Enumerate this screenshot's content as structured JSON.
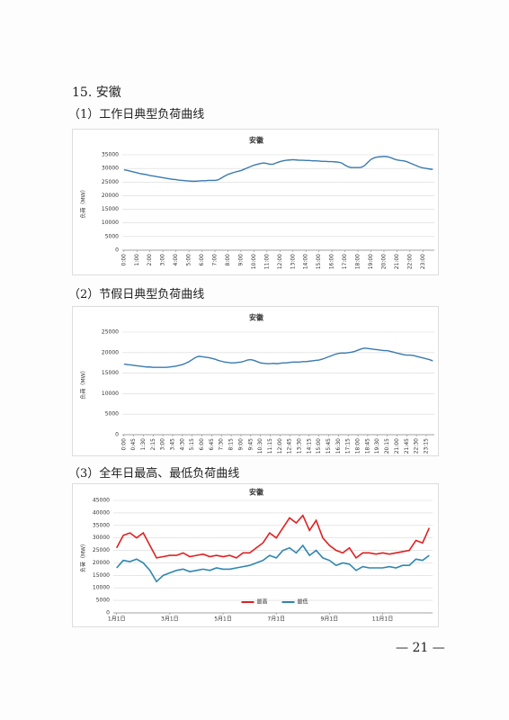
{
  "heading": "15. 安徽",
  "captions": [
    "（1）工作日典型负荷曲线",
    "（2）节假日典型负荷曲线",
    "（3）全年日最高、最低负荷曲线"
  ],
  "page_number": "— 21 —",
  "chart_data": [
    {
      "type": "line",
      "title": "安徽",
      "y_label": "负荷（MW）",
      "color": "#3a7ab0",
      "grid": true,
      "ylim": [
        0,
        35000
      ],
      "yticks": [
        0,
        5000,
        10000,
        15000,
        20000,
        25000,
        30000,
        35000
      ],
      "categories": [
        "0:00",
        null,
        null,
        null,
        "1:00",
        null,
        null,
        null,
        "2:00",
        null,
        null,
        null,
        "3:00",
        null,
        null,
        null,
        "4:00",
        null,
        null,
        null,
        "5:00",
        null,
        null,
        null,
        "6:00",
        null,
        null,
        null,
        "7:00",
        null,
        null,
        null,
        "8:00",
        null,
        null,
        null,
        "9:00",
        null,
        null,
        null,
        "10:00",
        null,
        null,
        null,
        "11:00",
        null,
        null,
        null,
        "12:00",
        null,
        null,
        null,
        "13:00",
        null,
        null,
        null,
        "14:00",
        null,
        null,
        null,
        "15:00",
        null,
        null,
        null,
        "16:00",
        null,
        null,
        null,
        "17:00",
        null,
        null,
        null,
        "18:00",
        null,
        null,
        null,
        "19:00",
        null,
        null,
        null,
        "20:00",
        null,
        null,
        null,
        "21:00",
        null,
        null,
        null,
        "22:00",
        null,
        null,
        null,
        "23:00",
        null,
        null,
        null
      ],
      "values": [
        29500,
        29300,
        29000,
        28700,
        28400,
        28100,
        27900,
        27700,
        27400,
        27200,
        27000,
        26800,
        26600,
        26400,
        26200,
        26000,
        25900,
        25700,
        25600,
        25500,
        25400,
        25300,
        25300,
        25400,
        25500,
        25500,
        25600,
        25600,
        25600,
        25800,
        26500,
        27200,
        27800,
        28200,
        28600,
        28900,
        29200,
        29700,
        30200,
        30700,
        31200,
        31500,
        31800,
        32000,
        31800,
        31500,
        31600,
        32100,
        32500,
        32800,
        33000,
        33100,
        33200,
        33100,
        33000,
        33000,
        32900,
        32900,
        32800,
        32800,
        32700,
        32600,
        32600,
        32500,
        32500,
        32400,
        32300,
        32000,
        31200,
        30600,
        30300,
        30300,
        30300,
        30400,
        31000,
        32200,
        33300,
        33900,
        34200,
        34300,
        34400,
        34300,
        34000,
        33500,
        33100,
        32900,
        32800,
        32500,
        32000,
        31500,
        31000,
        30500,
        30200,
        30000,
        29800,
        29600
      ]
    },
    {
      "type": "line",
      "title": "安徽",
      "y_label": "负荷（MW）",
      "color": "#3a7ab0",
      "grid": true,
      "ylim": [
        0,
        25000
      ],
      "yticks": [
        0,
        5000,
        10000,
        15000,
        20000,
        25000
      ],
      "categories": [
        "0:00",
        null,
        null,
        "0:45",
        null,
        null,
        "1:30",
        null,
        null,
        "2:15",
        null,
        null,
        "3:00",
        null,
        null,
        "3:45",
        null,
        null,
        "4:30",
        null,
        null,
        "5:15",
        null,
        null,
        "6:00",
        null,
        null,
        "6:45",
        null,
        null,
        "7:30",
        null,
        null,
        "8:15",
        null,
        null,
        "9:00",
        null,
        null,
        "9:45",
        null,
        null,
        "10:30",
        null,
        null,
        "11:15",
        null,
        null,
        "12:00",
        null,
        null,
        "12:45",
        null,
        null,
        "13:30",
        null,
        null,
        "14:15",
        null,
        null,
        "15:00",
        null,
        null,
        "15:45",
        null,
        null,
        "16:30",
        null,
        null,
        "17:15",
        null,
        null,
        "18:00",
        null,
        null,
        "18:45",
        null,
        null,
        "19:30",
        null,
        null,
        "20:15",
        null,
        null,
        "21:00",
        null,
        null,
        "21:45",
        null,
        null,
        "22:30",
        null,
        null,
        "23:15",
        null,
        null
      ],
      "values": [
        17200,
        17100,
        17000,
        16900,
        16800,
        16700,
        16600,
        16500,
        16500,
        16400,
        16400,
        16400,
        16400,
        16400,
        16500,
        16600,
        16700,
        16900,
        17100,
        17400,
        17800,
        18300,
        18800,
        19100,
        19000,
        18900,
        18800,
        18600,
        18400,
        18100,
        17900,
        17700,
        17600,
        17500,
        17500,
        17600,
        17700,
        17900,
        18200,
        18300,
        18100,
        17800,
        17500,
        17400,
        17300,
        17300,
        17400,
        17300,
        17400,
        17500,
        17500,
        17600,
        17700,
        17700,
        17700,
        17800,
        17800,
        17900,
        18000,
        18100,
        18200,
        18400,
        18700,
        19000,
        19300,
        19600,
        19800,
        19900,
        19900,
        20000,
        20100,
        20300,
        20600,
        20900,
        21100,
        21000,
        20900,
        20800,
        20700,
        20600,
        20500,
        20500,
        20300,
        20100,
        19900,
        19700,
        19500,
        19400,
        19400,
        19300,
        19100,
        18900,
        18700,
        18500,
        18300,
        18000
      ]
    },
    {
      "type": "line",
      "title": "安徽",
      "y_label": "负荷（MW）",
      "grid": true,
      "legend": "bottom",
      "ylim": [
        0,
        45000
      ],
      "yticks": [
        0,
        5000,
        10000,
        15000,
        20000,
        25000,
        30000,
        35000,
        40000,
        45000
      ],
      "categories": [
        "1月1日",
        null,
        null,
        null,
        null,
        null,
        null,
        null,
        "3月1日",
        null,
        null,
        null,
        null,
        null,
        null,
        null,
        "5月1日",
        null,
        null,
        null,
        null,
        null,
        null,
        null,
        "7月1日",
        null,
        null,
        null,
        null,
        null,
        null,
        null,
        "9月1日",
        null,
        null,
        null,
        null,
        null,
        null,
        null,
        "11月1日",
        null,
        null,
        null,
        null,
        null,
        null,
        null
      ],
      "series": [
        {
          "name": "最高",
          "color": "#e02020",
          "values": [
            26000,
            31000,
            32000,
            30000,
            32000,
            27000,
            22000,
            22500,
            23000,
            23000,
            24000,
            22500,
            23000,
            23500,
            22500,
            23000,
            22500,
            23000,
            22000,
            24000,
            24000,
            26000,
            28000,
            32000,
            30000,
            34000,
            38000,
            36000,
            39000,
            33000,
            37000,
            30000,
            27000,
            25000,
            24000,
            26000,
            22000,
            24000,
            24000,
            23500,
            24000,
            23500,
            24000,
            24500,
            25000,
            29000,
            28000,
            34000
          ]
        },
        {
          "name": "最低",
          "color": "#2e86b0",
          "values": [
            18000,
            21000,
            20500,
            21500,
            20000,
            17000,
            12500,
            15000,
            16000,
            17000,
            17500,
            16500,
            17000,
            17500,
            17000,
            18000,
            17500,
            17500,
            18000,
            18500,
            19000,
            20000,
            21000,
            23000,
            22000,
            25000,
            26000,
            24000,
            27000,
            23000,
            25000,
            22000,
            21000,
            19000,
            20000,
            19500,
            17000,
            18500,
            18000,
            18000,
            18000,
            18500,
            18000,
            19000,
            19000,
            21500,
            21000,
            23000
          ]
        }
      ]
    }
  ]
}
